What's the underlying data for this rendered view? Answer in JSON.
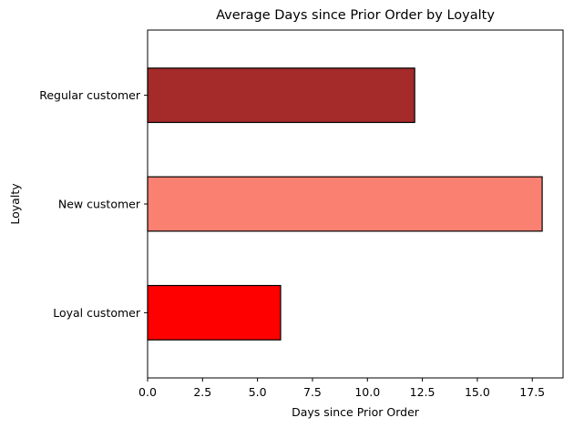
{
  "chart_data": {
    "type": "bar",
    "orientation": "horizontal",
    "title": "Average Days since Prior Order by Loyalty",
    "xlabel": "Days since Prior Order",
    "ylabel": "Loyalty",
    "categories": [
      "Loyal customer",
      "New customer",
      "Regular customer"
    ],
    "values": [
      6.05,
      17.95,
      12.15
    ],
    "colors": [
      "#ff0000",
      "#fa8072",
      "#a52a2a"
    ],
    "edge_color": "#000000",
    "xlim": [
      0,
      18.9
    ],
    "xticks": [
      0.0,
      2.5,
      5.0,
      7.5,
      10.0,
      12.5,
      15.0,
      17.5
    ],
    "xtick_labels": [
      "0.0",
      "2.5",
      "5.0",
      "7.5",
      "10.0",
      "12.5",
      "15.0",
      "17.5"
    ],
    "grid": false,
    "legend": "none"
  }
}
